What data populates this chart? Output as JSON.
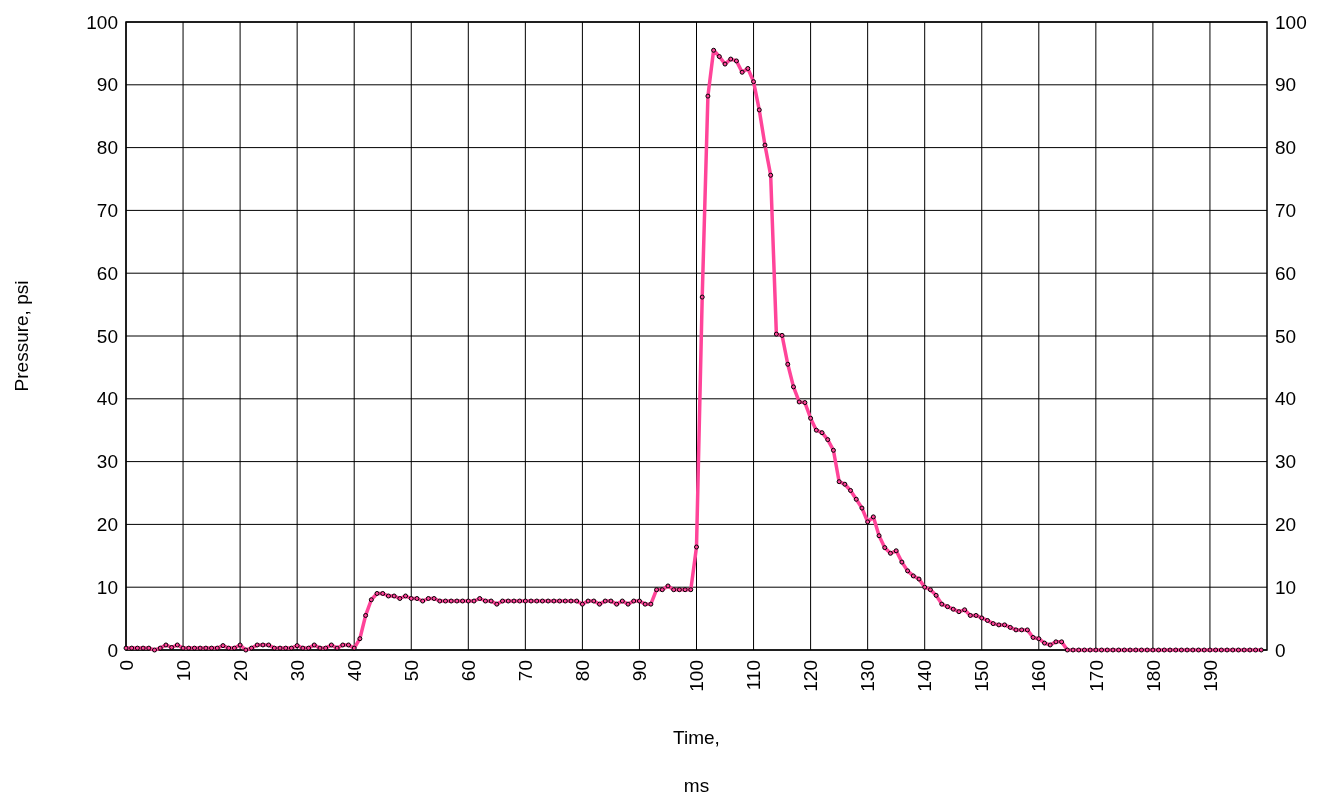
{
  "chart_data": {
    "type": "line",
    "xlabel": "Time,\nms",
    "ylabel": "Pressure, psi",
    "xlim": [
      0,
      200
    ],
    "xticks": [
      0,
      10,
      20,
      30,
      40,
      50,
      60,
      70,
      80,
      90,
      100,
      110,
      120,
      130,
      140,
      150,
      160,
      170,
      180,
      190
    ],
    "ylim": [
      0,
      100
    ],
    "yticks": [
      0,
      10,
      20,
      30,
      40,
      50,
      60,
      70,
      80,
      90,
      100
    ],
    "y2lim": [
      0,
      100
    ],
    "y2ticks": [
      0,
      10,
      20,
      30,
      40,
      50,
      60,
      70,
      80,
      90,
      100
    ],
    "grid": true,
    "marker": "circle",
    "line_style": "solid",
    "x": [
      0,
      1,
      2,
      3,
      4,
      5,
      6,
      7,
      8,
      9,
      10,
      11,
      12,
      13,
      14,
      15,
      16,
      17,
      18,
      19,
      20,
      21,
      22,
      23,
      24,
      25,
      26,
      27,
      28,
      29,
      30,
      31,
      32,
      33,
      34,
      35,
      36,
      37,
      38,
      39,
      40,
      41,
      42,
      43,
      44,
      45,
      46,
      47,
      48,
      49,
      50,
      51,
      52,
      53,
      54,
      55,
      56,
      57,
      58,
      59,
      60,
      61,
      62,
      63,
      64,
      65,
      66,
      67,
      68,
      69,
      70,
      71,
      72,
      73,
      74,
      75,
      76,
      77,
      78,
      79,
      80,
      81,
      82,
      83,
      84,
      85,
      86,
      87,
      88,
      89,
      90,
      91,
      92,
      93,
      94,
      95,
      96,
      97,
      98,
      99,
      100,
      101,
      102,
      103,
      104,
      105,
      106,
      107,
      108,
      109,
      110,
      111,
      112,
      113,
      114,
      115,
      116,
      117,
      118,
      119,
      120,
      121,
      122,
      123,
      124,
      125,
      126,
      127,
      128,
      129,
      130,
      131,
      132,
      133,
      134,
      135,
      136,
      137,
      138,
      139,
      140,
      141,
      142,
      143,
      144,
      145,
      146,
      147,
      148,
      149,
      150,
      151,
      152,
      153,
      154,
      155,
      156,
      157,
      158,
      159,
      160,
      161,
      162,
      163,
      164,
      165,
      166,
      167,
      168,
      169,
      170,
      171,
      172,
      173,
      174,
      175,
      176,
      177,
      178,
      179,
      180,
      181,
      182,
      183,
      184,
      185,
      186,
      187,
      188,
      189,
      190,
      191,
      192,
      193,
      194,
      195,
      196,
      197,
      198,
      199
    ],
    "series": [
      {
        "color": "#ff4499",
        "values": [
          0.3,
          0.3,
          0.3,
          0.3,
          0.3,
          0,
          0.3,
          0.8,
          0.4,
          0.8,
          0.3,
          0.3,
          0.3,
          0.3,
          0.3,
          0.3,
          0.3,
          0.7,
          0.3,
          0.3,
          0.8,
          0,
          0.3,
          0.8,
          0.8,
          0.8,
          0.3,
          0.3,
          0.3,
          0.3,
          0.7,
          0.3,
          0.3,
          0.8,
          0.3,
          0.3,
          0.8,
          0.3,
          0.8,
          0.8,
          0.3,
          1.8,
          5.5,
          8,
          9,
          9,
          8.6,
          8.6,
          8.2,
          8.6,
          8.2,
          8.2,
          7.8,
          8.2,
          8.2,
          7.8,
          7.8,
          7.8,
          7.8,
          7.8,
          7.8,
          7.8,
          8.2,
          7.8,
          7.8,
          7.3,
          7.8,
          7.8,
          7.8,
          7.8,
          7.8,
          7.8,
          7.8,
          7.8,
          7.8,
          7.8,
          7.8,
          7.8,
          7.8,
          7.8,
          7.3,
          7.8,
          7.8,
          7.3,
          7.8,
          7.8,
          7.3,
          7.8,
          7.3,
          7.8,
          7.8,
          7.3,
          7.3,
          9.6,
          9.6,
          10.2,
          9.6,
          9.6,
          9.6,
          9.6,
          16.4,
          56.2,
          88.2,
          95.5,
          94.5,
          93.3,
          94.1,
          93.8,
          92.0,
          92.6,
          90.5,
          86.0,
          80.4,
          75.6,
          50.3,
          50.1,
          45.5,
          41.9,
          39.5,
          39.4,
          36.9,
          35.0,
          34.6,
          33.5,
          31.8,
          26.8,
          26.4,
          25.4,
          24.0,
          22.6,
          20.4,
          21.2,
          18.2,
          16.3,
          15.4,
          15.8,
          14.0,
          12.6,
          11.8,
          11.3,
          10.0,
          9.6,
          8.7,
          7.3,
          6.9,
          6.5,
          6.1,
          6.4,
          5.5,
          5.5,
          5.1,
          4.7,
          4.2,
          4.0,
          4.0,
          3.6,
          3.2,
          3.2,
          3.2,
          2.0,
          1.8,
          1.1,
          0.8,
          1.3,
          1.3,
          0,
          0,
          0,
          0,
          0,
          0,
          0,
          0,
          0,
          0,
          0,
          0,
          0,
          0,
          0,
          0,
          0,
          0,
          0,
          0,
          0,
          0,
          0,
          0,
          0,
          0,
          0,
          0,
          0,
          0,
          0,
          0,
          0,
          0,
          0
        ]
      }
    ]
  }
}
